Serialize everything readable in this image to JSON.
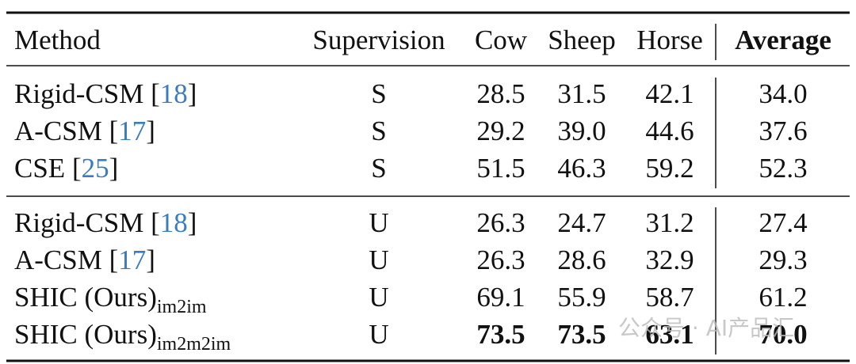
{
  "table": {
    "header": [
      "Method",
      "Supervision",
      "Cow",
      "Sheep",
      "Horse",
      "Average"
    ],
    "groups": [
      [
        {
          "method": [
            "Rigid-CSM [",
            "18",
            "]"
          ],
          "supervision": "S",
          "values": [
            "28.5",
            "31.5",
            "42.1",
            "34.0"
          ]
        },
        {
          "method": [
            "A-CSM [",
            "17",
            "]"
          ],
          "supervision": "S",
          "values": [
            "29.2",
            "39.0",
            "44.6",
            "37.6"
          ]
        },
        {
          "method": [
            "CSE [",
            "25",
            "]"
          ],
          "supervision": "S",
          "values": [
            "51.5",
            "46.3",
            "59.2",
            "52.3"
          ]
        }
      ],
      [
        {
          "method": [
            "Rigid-CSM [",
            "18",
            "]"
          ],
          "supervision": "U",
          "values": [
            "26.3",
            "24.7",
            "31.2",
            "27.4"
          ]
        },
        {
          "method": [
            "A-CSM [",
            "17",
            "]"
          ],
          "supervision": "U",
          "values": [
            "26.3",
            "28.6",
            "32.9",
            "29.3"
          ]
        },
        {
          "method": [
            "SHIC (Ours)"
          ],
          "subscript": "im2im",
          "supervision": "U",
          "values": [
            "69.1",
            "55.9",
            "58.7",
            "61.2"
          ]
        },
        {
          "method": [
            "SHIC (Ours)"
          ],
          "subscript": "im2m2im",
          "supervision": "U",
          "values": [
            "73.5",
            "73.5",
            "63.1",
            "70.0"
          ],
          "bold": true
        }
      ]
    ]
  },
  "watermark": "公众号 · AI产品汇"
}
